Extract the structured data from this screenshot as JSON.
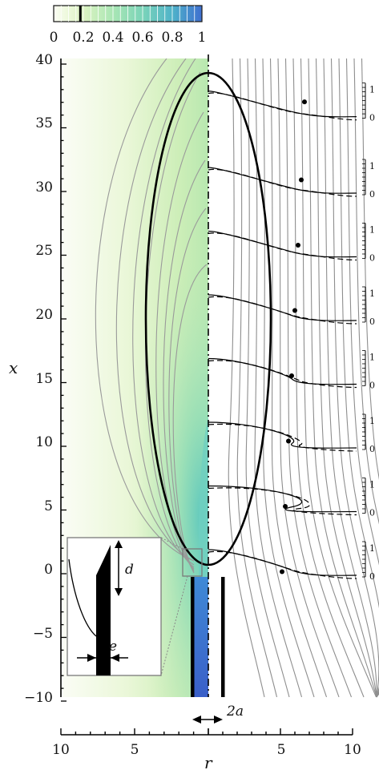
{
  "chart_data": {
    "type": "area",
    "colorbar": {
      "ticks": [
        "0",
        "0.2",
        "0.4",
        "0.6",
        "0.8",
        "1"
      ],
      "range": [
        0,
        1
      ],
      "marked_value": 0.18,
      "colors": [
        "#fbfdf3",
        "#dcf3c2",
        "#a9e6b4",
        "#7bd4b9",
        "#4fb3c9",
        "#3f6fd0"
      ]
    },
    "x_axis": {
      "label": "r",
      "ticks_left": [
        "10",
        "5"
      ],
      "ticks_right": [
        "5",
        "10"
      ],
      "range_left": [
        10,
        0
      ],
      "range_right": [
        0,
        10
      ]
    },
    "y_axis": {
      "label": "x",
      "ticks": [
        "40",
        "35",
        "30",
        "25",
        "20",
        "15",
        "10",
        "5",
        "0",
        "−5",
        "−10"
      ],
      "range": [
        -10,
        40
      ]
    },
    "right_profile_axis": {
      "tick_labels": [
        "1",
        "0",
        "1",
        "0",
        "1",
        "0",
        "1",
        "0",
        "1",
        "0",
        "1",
        "0",
        "1",
        "0",
        "1",
        "0"
      ],
      "stations_x": [
        36,
        30,
        25,
        20,
        15,
        10,
        5,
        0
      ]
    },
    "ellipse": {
      "x_top": 36.8,
      "x_bottom": -0.8,
      "r_max": 4.3
    },
    "annotations": {
      "gap_label": "2a",
      "inset_height_label": "d",
      "inset_thickness_label": "e"
    }
  }
}
